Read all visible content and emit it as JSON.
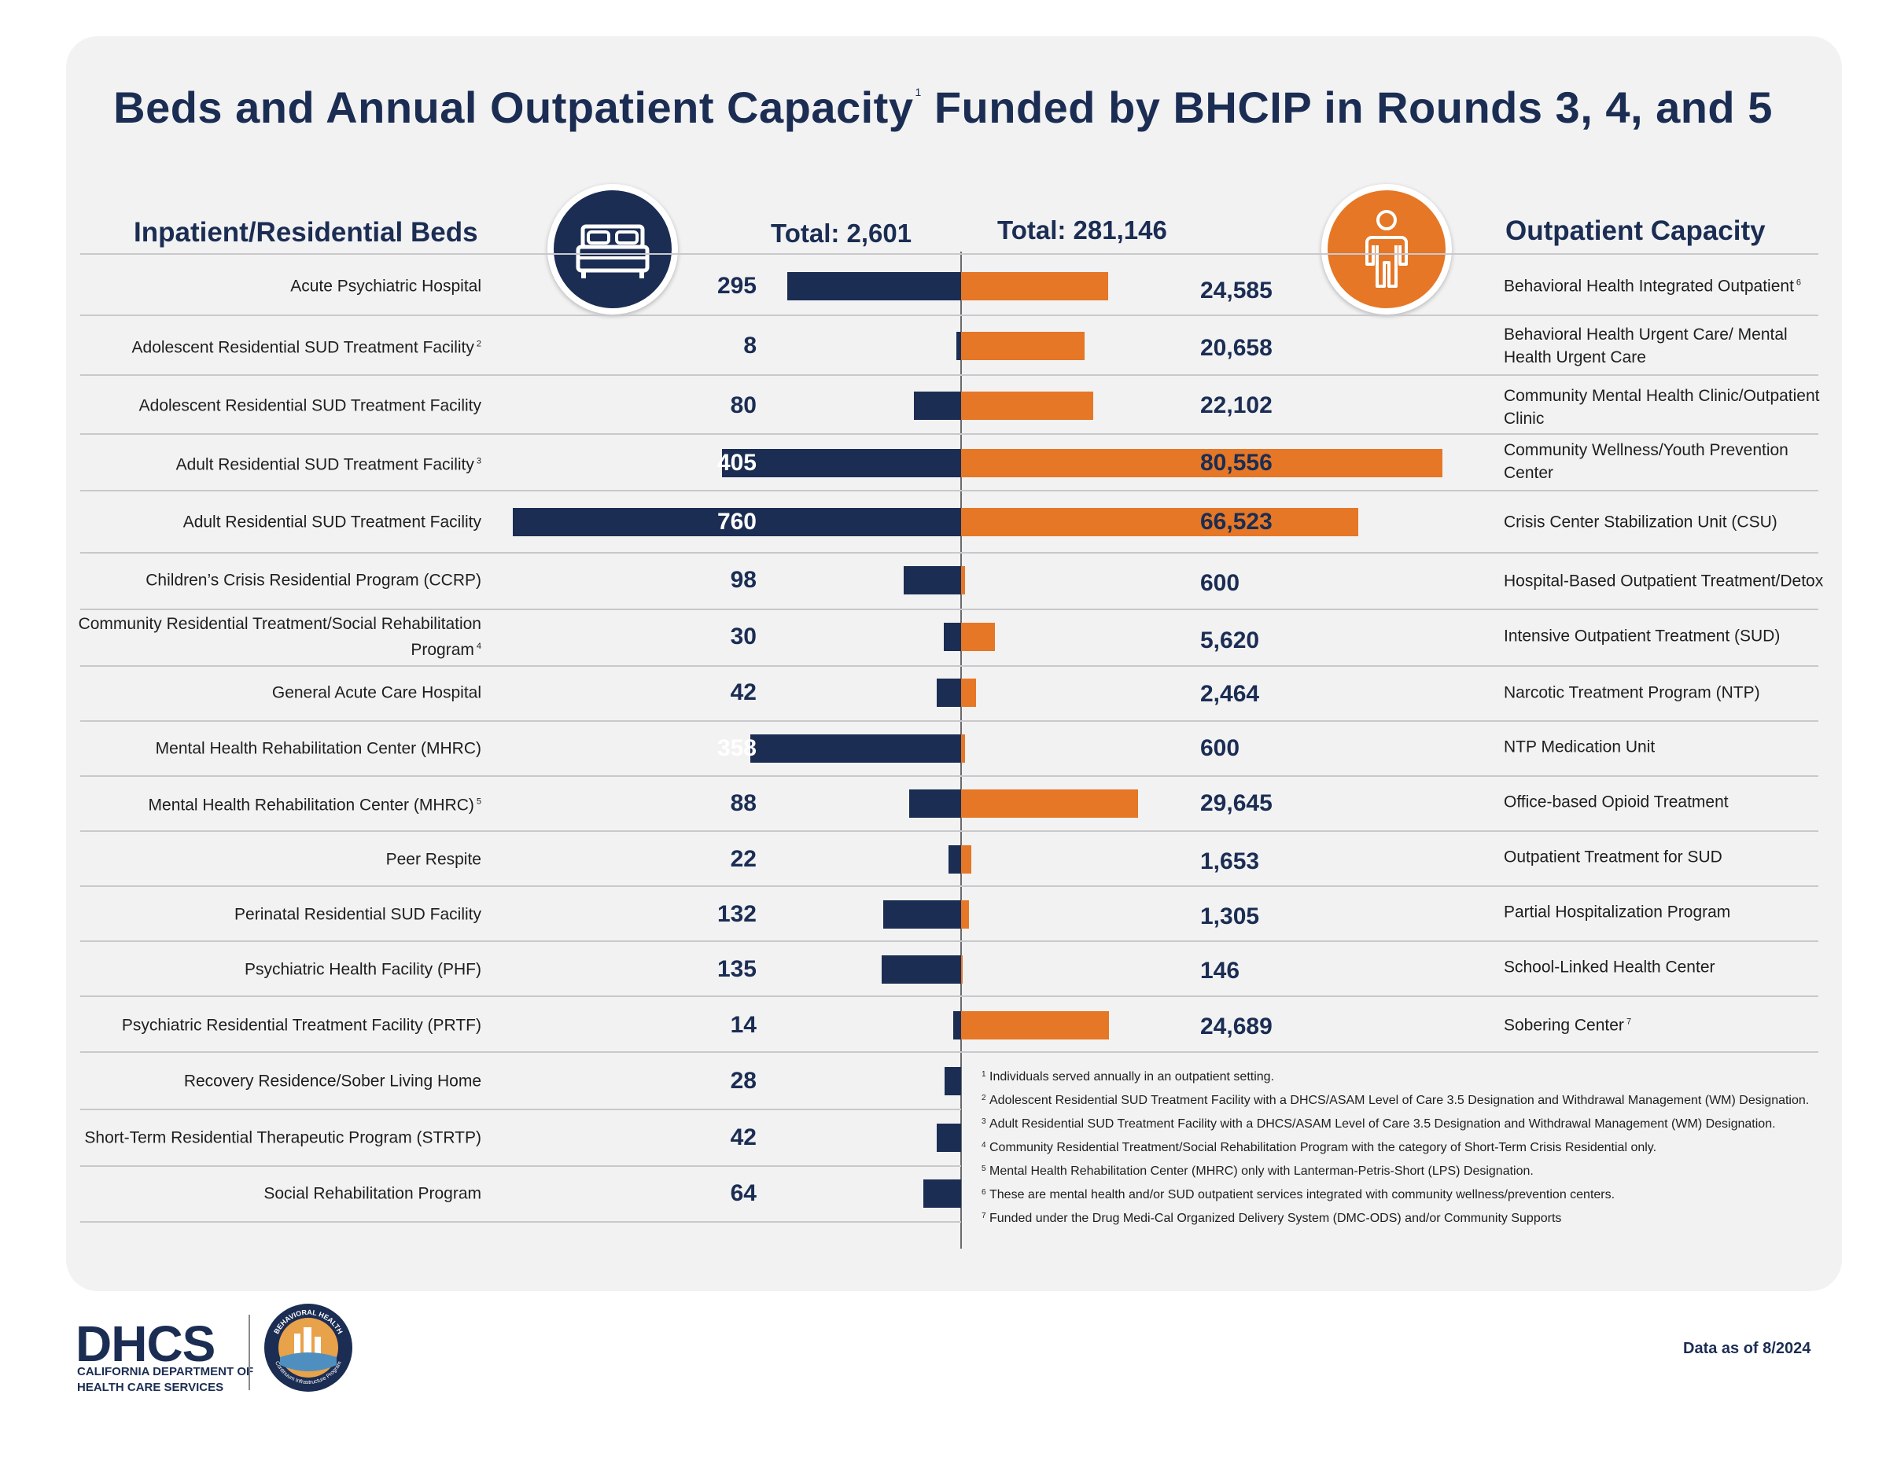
{
  "title": "Beds and Annual Outpatient Capacity",
  "title_sup": "1",
  "title_rest": "Funded by BHCIP in Rounds 3, 4, and 5",
  "left_header": "Inpatient/Residential Beds",
  "right_header": "Outpatient Capacity",
  "total_beds_label": "Total: 2,601",
  "total_outpatient_label": "Total: 281,146",
  "icons": {
    "beds": "bed-icon",
    "outpatient": "person-icon"
  },
  "colors": {
    "beds": "#1b2d53",
    "outpatient": "#e57726",
    "background": "#f2f2f3"
  },
  "chart_data": {
    "type": "bar",
    "orientation": "horizontal",
    "layout": "back-to-back",
    "title": "Beds and Annual Outpatient Capacity Funded by BHCIP in Rounds 3, 4, and 5",
    "series": [
      {
        "name": "Inpatient/Residential Beds",
        "total": 2601,
        "color": "#1b2d53",
        "categories": [
          {
            "label": "Acute Psychiatric Hospital",
            "sup": "",
            "value": 295,
            "value_label": "295"
          },
          {
            "label": "Adolescent Residential SUD Treatment Facility",
            "sup": "2",
            "value": 8,
            "value_label": "8"
          },
          {
            "label": "Adolescent Residential SUD Treatment Facility",
            "sup": "",
            "value": 80,
            "value_label": "80"
          },
          {
            "label": "Adult Residential SUD Treatment Facility",
            "sup": "3",
            "value": 405,
            "value_label": "405"
          },
          {
            "label": "Adult Residential SUD Treatment Facility",
            "sup": "",
            "value": 760,
            "value_label": "760"
          },
          {
            "label": "Children’s Crisis Residential Program (CCRP)",
            "sup": "",
            "value": 98,
            "value_label": "98"
          },
          {
            "label": "Community Residential Treatment/Social Rehabilitation Program",
            "sup": "4",
            "value": 30,
            "value_label": "30"
          },
          {
            "label": "General Acute Care Hospital",
            "sup": "",
            "value": 42,
            "value_label": "42"
          },
          {
            "label": "Mental Health Rehabilitation Center (MHRC)",
            "sup": "",
            "value": 358,
            "value_label": "358"
          },
          {
            "label": "Mental Health Rehabilitation Center (MHRC)",
            "sup": "5",
            "value": 88,
            "value_label": "88"
          },
          {
            "label": "Peer Respite",
            "sup": "",
            "value": 22,
            "value_label": "22"
          },
          {
            "label": "Perinatal Residential SUD Facility",
            "sup": "",
            "value": 132,
            "value_label": "132"
          },
          {
            "label": "Psychiatric Health Facility (PHF)",
            "sup": "",
            "value": 135,
            "value_label": "135"
          },
          {
            "label": "Psychiatric Residential Treatment Facility (PRTF)",
            "sup": "",
            "value": 14,
            "value_label": "14"
          },
          {
            "label": "Recovery Residence/Sober Living Home",
            "sup": "",
            "value": 28,
            "value_label": "28"
          },
          {
            "label": "Short-Term Residential Therapeutic Program (STRTP)",
            "sup": "",
            "value": 42,
            "value_label": "42"
          },
          {
            "label": "Social Rehabilitation Program",
            "sup": "",
            "value": 64,
            "value_label": "64"
          }
        ]
      },
      {
        "name": "Outpatient Capacity",
        "total": 281146,
        "color": "#e57726",
        "categories": [
          {
            "label": "Behavioral Health Integrated Outpatient",
            "sup": "6",
            "value": 24585,
            "value_label": "24,585"
          },
          {
            "label": "Behavioral Health Urgent Care/ Mental Health Urgent Care",
            "sup": "",
            "value": 20658,
            "value_label": "20,658"
          },
          {
            "label": "Community Mental Health Clinic/Outpatient Clinic",
            "sup": "",
            "value": 22102,
            "value_label": "22,102"
          },
          {
            "label": "Community Wellness/Youth Prevention Center",
            "sup": "",
            "value": 80556,
            "value_label": "80,556"
          },
          {
            "label": "Crisis Center Stabilization Unit (CSU)",
            "sup": "",
            "value": 66523,
            "value_label": "66,523"
          },
          {
            "label": "Hospital-Based Outpatient Treatment/Detox",
            "sup": "",
            "value": 600,
            "value_label": "600"
          },
          {
            "label": "Intensive Outpatient Treatment (SUD)",
            "sup": "",
            "value": 5620,
            "value_label": "5,620"
          },
          {
            "label": "Narcotic Treatment Program (NTP)",
            "sup": "",
            "value": 2464,
            "value_label": "2,464"
          },
          {
            "label": "NTP Medication Unit",
            "sup": "",
            "value": 600,
            "value_label": "600"
          },
          {
            "label": "Office-based Opioid Treatment",
            "sup": "",
            "value": 29645,
            "value_label": "29,645"
          },
          {
            "label": "Outpatient Treatment for SUD",
            "sup": "",
            "value": 1653,
            "value_label": "1,653"
          },
          {
            "label": "Partial Hospitalization Program",
            "sup": "",
            "value": 1305,
            "value_label": "1,305"
          },
          {
            "label": "School-Linked Health Center",
            "sup": "",
            "value": 146,
            "value_label": "146"
          },
          {
            "label": "Sobering Center",
            "sup": "7",
            "value": 24689,
            "value_label": "24,689"
          }
        ]
      }
    ]
  },
  "footnotes": [
    {
      "num": "1",
      "text": "Individuals served annually in an outpatient setting."
    },
    {
      "num": "2",
      "text": "Adolescent Residential SUD Treatment Facility with a DHCS/ASAM Level of Care 3.5 Designation and Withdrawal Management (WM) Designation."
    },
    {
      "num": "3",
      "text": "Adult Residential SUD Treatment Facility with a DHCS/ASAM Level of Care 3.5 Designation and Withdrawal Management (WM) Designation."
    },
    {
      "num": "4",
      "text": "Community Residential Treatment/Social Rehabilitation Program with the category of Short-Term Crisis Residential only."
    },
    {
      "num": "5",
      "text": "Mental Health Rehabilitation Center (MHRC) only with Lanterman-Petris-Short (LPS) Designation."
    },
    {
      "num": "6",
      "text": "These are mental health and/or SUD outpatient services integrated with community wellness/prevention centers."
    },
    {
      "num": "7",
      "text": "Funded under the Drug Medi-Cal Organized Delivery System (DMC-ODS) and/or Community Supports"
    }
  ],
  "logo": {
    "wordmark": "DHCS",
    "line1": "CALIFORNIA DEPARTMENT OF",
    "line2": "HEALTH CARE SERVICES",
    "seal_top": "BEHAVIORAL HEALTH",
    "seal_bottom": "Continuum Infrastructure Program"
  },
  "data_as_of": "Data as of 8/2024"
}
